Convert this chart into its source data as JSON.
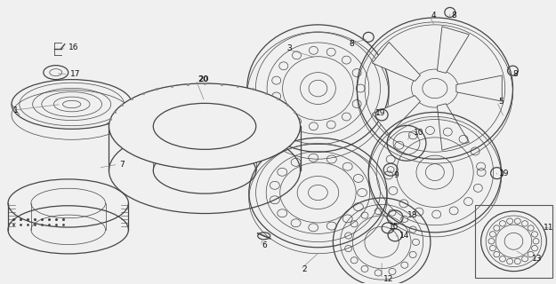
{
  "bg_color": "#f0f0f0",
  "line_color": "#444444",
  "label_color": "#111111",
  "label_fontsize": 6.5,
  "fig_w": 6.25,
  "fig_h": 3.2,
  "dpi": 100
}
